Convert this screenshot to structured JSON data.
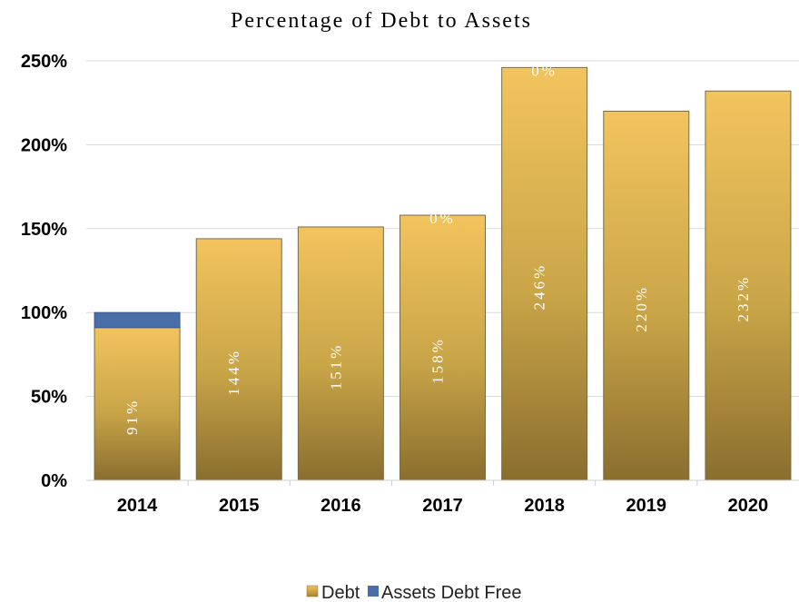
{
  "chart_data": {
    "type": "bar",
    "stacked": true,
    "title": "Percentage of Debt to Assets",
    "categories": [
      "2014",
      "2015",
      "2016",
      "2017",
      "2018",
      "2019",
      "2020"
    ],
    "series": [
      {
        "name": "Debt",
        "values": [
          91,
          144,
          151,
          158,
          246,
          220,
          232
        ],
        "color": "#d9b256",
        "labels": [
          "91%",
          "144%",
          "151%",
          "158%",
          "246%",
          "220%",
          "232%"
        ]
      },
      {
        "name": "Assets Debt Free",
        "values": [
          9,
          0,
          0,
          0,
          0,
          0,
          0
        ],
        "color": "#4a6ea8",
        "labels": [
          "",
          "",
          "",
          "0%",
          "0%",
          "",
          ""
        ]
      }
    ],
    "y_ticks": [
      "0%",
      "50%",
      "100%",
      "150%",
      "200%",
      "250%"
    ],
    "ylim": [
      0,
      250
    ],
    "grid": true,
    "legend_position": "bottom"
  }
}
